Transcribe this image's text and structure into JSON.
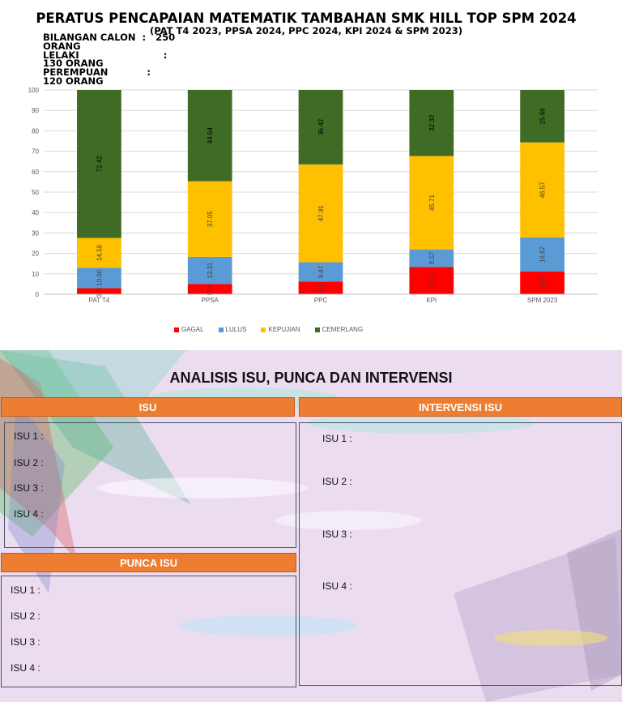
{
  "header": {
    "title": "PERATUS PENCAPAIAN MATEMATIK TAMBAHAN SMK HILL TOP SPM 2024",
    "subtitle": "(PAT T4 2023, PPSA 2024, PPC 2024, KPI 2024 & SPM 2023)",
    "stats": [
      "BILANGAN CALON  :   250",
      "ORANG",
      "LELAKI                          :",
      "130 ORANG",
      "PEREMPUAN            :",
      "120 ORANG"
    ]
  },
  "chart_data": {
    "type": "bar",
    "stacked": true,
    "categories": [
      "PAT T4",
      "PPSA",
      "PPC",
      "KPI",
      "SPM 2023"
    ],
    "ylim": [
      0,
      100
    ],
    "yticks": [
      0,
      10,
      20,
      30,
      40,
      50,
      60,
      70,
      80,
      90,
      100
    ],
    "grid": true,
    "legend_position": "bottom",
    "series": [
      {
        "name": "GAGAL",
        "color": "#ff0000",
        "values": [
          3.0,
          5.0,
          6.2,
          13.4,
          11.1
        ],
        "labels": [
          "3.00",
          "5.00",
          "6.2",
          "13.4",
          "11.1"
        ]
      },
      {
        "name": "LULUS",
        "color": "#5b9bd5",
        "values": [
          10.0,
          13.31,
          9.47,
          8.57,
          16.67
        ],
        "labels": [
          "10.00",
          "13.31",
          "9.47",
          "8.57",
          "16.67"
        ]
      },
      {
        "name": "KEPUJIAN",
        "color": "#ffc000",
        "values": [
          14.58,
          37.05,
          47.91,
          45.71,
          46.57
        ],
        "labels": [
          "14.58",
          "37.05",
          "47.91",
          "45.71",
          "46.57"
        ]
      },
      {
        "name": "CEMERLANG",
        "color": "#3f6b24",
        "values": [
          72.42,
          44.64,
          36.42,
          32.32,
          25.66
        ],
        "labels": [
          "72.42",
          "44.64",
          "36.42",
          "32.32",
          "25.66"
        ]
      }
    ]
  },
  "analysis": {
    "title": "ANALISIS ISU, PUNCA DAN INTERVENSI",
    "isu_header": "ISU",
    "intervensi_header": "INTERVENSI ISU",
    "punca_header": "PUNCA ISU",
    "isu_items": [
      "ISU 1 :",
      "ISU 2 :",
      "ISU 3 :",
      "ISU 4 :"
    ],
    "punca_items": [
      "ISU 1 :",
      "ISU 2 :",
      "ISU 3 :",
      "ISU 4 :"
    ],
    "intervensi_items": [
      "ISU 1 :",
      "ISU 2 :",
      "ISU 3 :",
      "ISU 4 :"
    ]
  }
}
